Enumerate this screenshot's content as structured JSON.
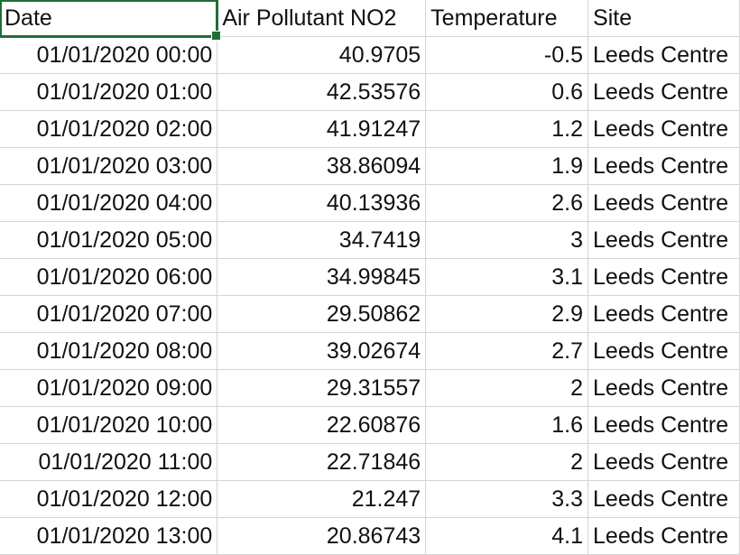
{
  "headers": [
    "Date",
    "Air Pollutant NO2",
    "Temperature",
    "Site"
  ],
  "rows": [
    [
      "01/01/2020 00:00",
      "40.9705",
      "-0.5",
      "Leeds Centre"
    ],
    [
      "01/01/2020 01:00",
      "42.53576",
      "0.6",
      "Leeds Centre"
    ],
    [
      "01/01/2020 02:00",
      "41.91247",
      "1.2",
      "Leeds Centre"
    ],
    [
      "01/01/2020 03:00",
      "38.86094",
      "1.9",
      "Leeds Centre"
    ],
    [
      "01/01/2020 04:00",
      "40.13936",
      "2.6",
      "Leeds Centre"
    ],
    [
      "01/01/2020 05:00",
      "34.7419",
      "3",
      "Leeds Centre"
    ],
    [
      "01/01/2020 06:00",
      "34.99845",
      "3.1",
      "Leeds Centre"
    ],
    [
      "01/01/2020 07:00",
      "29.50862",
      "2.9",
      "Leeds Centre"
    ],
    [
      "01/01/2020 08:00",
      "39.02674",
      "2.7",
      "Leeds Centre"
    ],
    [
      "01/01/2020 09:00",
      "29.31557",
      "2",
      "Leeds Centre"
    ],
    [
      "01/01/2020 10:00",
      "22.60876",
      "1.6",
      "Leeds Centre"
    ],
    [
      "01/01/2020 11:00",
      "22.71846",
      "2",
      "Leeds Centre"
    ],
    [
      "01/01/2020 12:00",
      "21.247",
      "3.3",
      "Leeds Centre"
    ]
  ],
  "partial_row": [
    "01/01/2020 13:00",
    "20.86743",
    "4.1",
    "Leeds Centre"
  ],
  "colors": {
    "selection": "#1e6e3a",
    "gridline": "#d4d4d4"
  }
}
